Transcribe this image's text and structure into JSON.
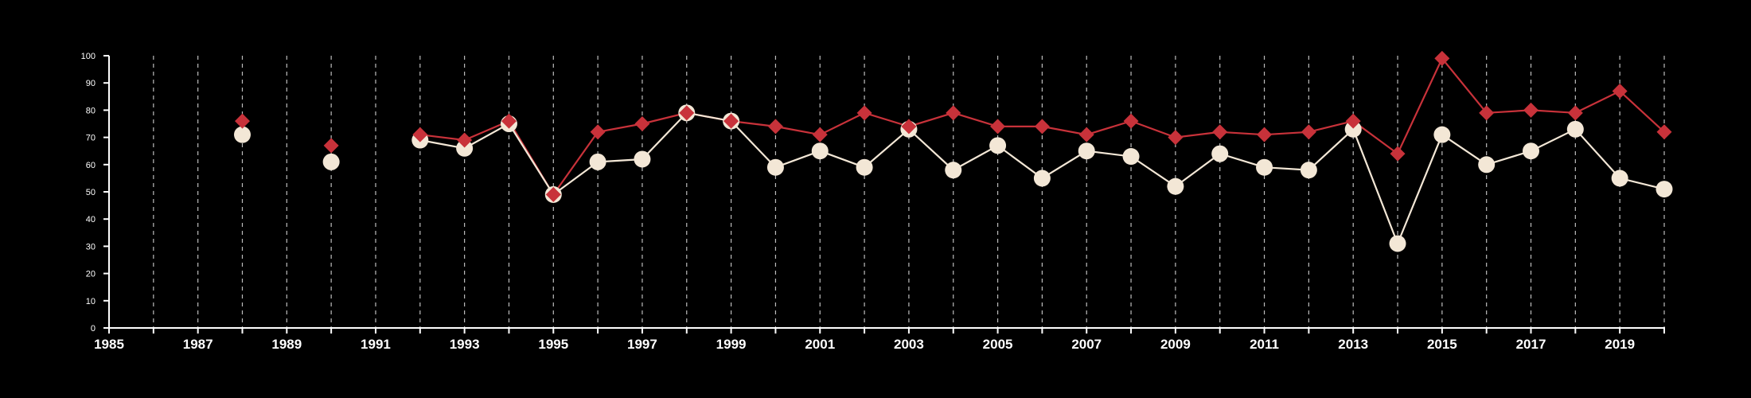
{
  "chart_data": {
    "type": "line",
    "title": "",
    "xlabel": "",
    "ylabel": "",
    "xlim": [
      1985,
      2020
    ],
    "ylim": [
      0,
      100
    ],
    "x_tick_labels": [
      1985,
      1987,
      1989,
      1991,
      1993,
      1995,
      1997,
      1999,
      2001,
      2003,
      2005,
      2007,
      2009,
      2011,
      2013,
      2015,
      2017,
      2019
    ],
    "y_tick_labels": [
      0,
      10,
      20,
      30,
      40,
      50,
      60,
      70,
      80,
      90,
      100
    ],
    "x_grid": "dashed vertical line every year",
    "legend": "none",
    "series": [
      {
        "color": "#c8323a",
        "marker": "diamond",
        "points": [
          [
            1988,
            76
          ],
          [
            1990,
            67
          ],
          [
            1992,
            71
          ],
          [
            1993,
            69
          ],
          [
            1994,
            76
          ],
          [
            1995,
            49
          ],
          [
            1996,
            72
          ],
          [
            1997,
            75
          ],
          [
            1998,
            79
          ],
          [
            1999,
            76
          ],
          [
            2000,
            74
          ],
          [
            2001,
            71
          ],
          [
            2002,
            79
          ],
          [
            2003,
            74
          ],
          [
            2004,
            79
          ],
          [
            2005,
            74
          ],
          [
            2006,
            74
          ],
          [
            2007,
            71
          ],
          [
            2008,
            76
          ],
          [
            2009,
            70
          ],
          [
            2010,
            72
          ],
          [
            2011,
            71
          ],
          [
            2012,
            72
          ],
          [
            2013,
            76
          ],
          [
            2014,
            64
          ],
          [
            2015,
            99
          ],
          [
            2016,
            79
          ],
          [
            2017,
            80
          ],
          [
            2018,
            79
          ],
          [
            2019,
            87
          ],
          [
            2020,
            72
          ]
        ]
      },
      {
        "color": "#f3e7d6",
        "marker": "circle",
        "points": [
          [
            1988,
            71
          ],
          [
            1990,
            61
          ],
          [
            1992,
            69
          ],
          [
            1993,
            66
          ],
          [
            1994,
            75
          ],
          [
            1995,
            49
          ],
          [
            1996,
            61
          ],
          [
            1997,
            62
          ],
          [
            1998,
            79
          ],
          [
            1999,
            76
          ],
          [
            2000,
            59
          ],
          [
            2001,
            65
          ],
          [
            2002,
            59
          ],
          [
            2003,
            73
          ],
          [
            2004,
            58
          ],
          [
            2005,
            67
          ],
          [
            2006,
            55
          ],
          [
            2007,
            65
          ],
          [
            2008,
            63
          ],
          [
            2009,
            52
          ],
          [
            2010,
            64
          ],
          [
            2011,
            59
          ],
          [
            2012,
            58
          ],
          [
            2013,
            73
          ],
          [
            2014,
            31
          ],
          [
            2015,
            71
          ],
          [
            2016,
            60
          ],
          [
            2017,
            65
          ],
          [
            2018,
            73
          ],
          [
            2019,
            55
          ],
          [
            2020,
            51
          ]
        ]
      }
    ]
  }
}
